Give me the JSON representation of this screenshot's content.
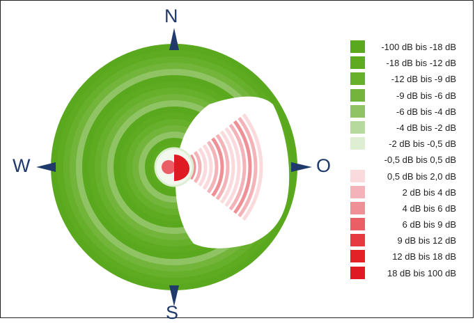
{
  "compass": {
    "north": "N",
    "west": "W",
    "east": "O",
    "south": "S",
    "arrow_color": "#1f3a6b"
  },
  "legend": {
    "items": [
      {
        "label": "-100 dB bis -18 dB",
        "color": "#5aa81e"
      },
      {
        "label": "-18 dB bis -12 dB",
        "color": "#5eab22"
      },
      {
        "label": "-12 dB bis -9 dB",
        "color": "#67b02b"
      },
      {
        "label": "-9 dB bis -6 dB",
        "color": "#72b53a"
      },
      {
        "label": "-6 dB bis -4 dB",
        "color": "#8fc364"
      },
      {
        "label": "-4 dB bis -2 dB",
        "color": "#b6d99e"
      },
      {
        "label": "-2 dB bis -0,5 dB",
        "color": "#deeed3"
      },
      {
        "label": "-0,5 dB bis 0,5 dB",
        "color": "#ffffff"
      },
      {
        "label": "0,5 dB bis 2,0 dB",
        "color": "#fadadd"
      },
      {
        "label": "2 dB bis 4 dB",
        "color": "#f4b3b8"
      },
      {
        "label": "4 dB bis 6 dB",
        "color": "#ef8f96"
      },
      {
        "label": "6 dB bis 9 dB",
        "color": "#ea5e66"
      },
      {
        "label": "9 dB bis 12 dB",
        "color": "#e63a40"
      },
      {
        "label": "12 dB bis 18 dB",
        "color": "#e32228"
      },
      {
        "label": "18 dB bis 100 dB",
        "color": "#e01a22"
      }
    ]
  },
  "chart_data": {
    "type": "heatmap",
    "projection": "polar",
    "description_levels_db": [
      "-100 dB bis -18 dB",
      "-18 dB bis -12 dB",
      "-12 dB bis -9 dB",
      "-9 dB bis -6 dB",
      "-6 dB bis -4 dB",
      "-4 dB bis -2 dB",
      "-2 dB bis -0,5 dB",
      "-0,5 dB bis 0,5 dB",
      "0,5 dB bis 2,0 dB",
      "2 dB bis 4 dB",
      "4 dB bis 6 dB",
      "6 dB bis 9 dB",
      "9 dB bis 12 dB",
      "12 dB bis 18 dB",
      "18 dB bis 100 dB"
    ],
    "directions": [
      "N",
      "O",
      "S",
      "W"
    ],
    "regions": [
      {
        "sector": "W",
        "from_deg": 150,
        "to_deg": 390,
        "level": "-6 dB bis -4 dB"
      },
      {
        "sector": "O",
        "from_deg": 30,
        "to_deg": 150,
        "level": "2 dB bis 4 dB"
      }
    ],
    "legend": "right"
  }
}
